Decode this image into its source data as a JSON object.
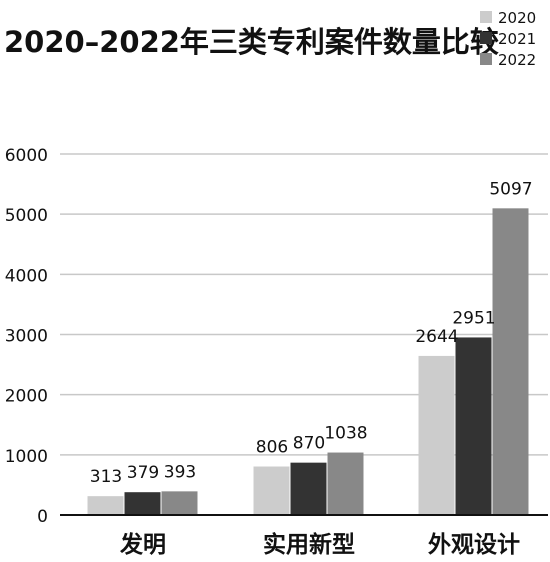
{
  "chart_data": {
    "type": "bar",
    "title": "2020–2022年三类专利案件数量比较",
    "xlabel": "",
    "ylabel": "",
    "categories": [
      "发明",
      "实用新型",
      "外观设计"
    ],
    "series": [
      {
        "name": "2020",
        "values": [
          313,
          806,
          2644
        ],
        "color": "#cccccc"
      },
      {
        "name": "2021",
        "values": [
          379,
          870,
          2951
        ],
        "color": "#333333"
      },
      {
        "name": "2022",
        "values": [
          393,
          1038,
          5097
        ],
        "color": "#888888"
      }
    ],
    "ylim": [
      0,
      6000
    ],
    "yticks": [
      "0",
      "1000",
      "2000",
      "3000",
      "4000",
      "5000",
      "6000"
    ],
    "grid": true,
    "legend_position": "top-right",
    "data_labels": true
  }
}
